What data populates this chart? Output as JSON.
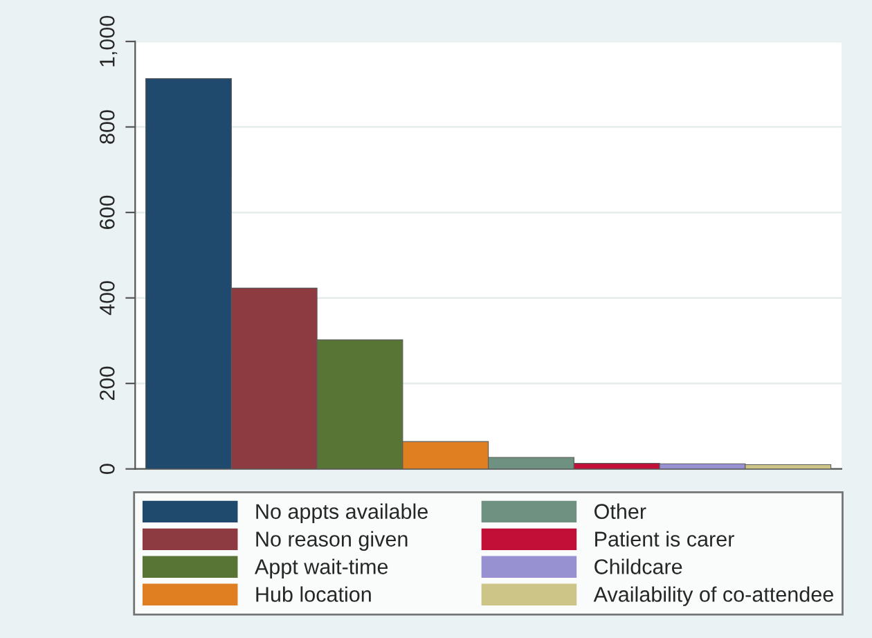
{
  "chart_data": {
    "type": "bar",
    "categories": [
      null
    ],
    "series": [
      {
        "name": "No appts available",
        "color": "#1f4a6e",
        "values": [
          913
        ]
      },
      {
        "name": "No reason given",
        "color": "#8e3a41",
        "values": [
          423
        ]
      },
      {
        "name": "Appt wait-time",
        "color": "#597535",
        "values": [
          302
        ]
      },
      {
        "name": "Hub location",
        "color": "#e07e22",
        "values": [
          64
        ]
      },
      {
        "name": "Other",
        "color": "#6f9181",
        "values": [
          27
        ]
      },
      {
        "name": "Patient is carer",
        "color": "#c10f38",
        "values": [
          13
        ]
      },
      {
        "name": "Childcare",
        "color": "#9791d1",
        "values": [
          12
        ]
      },
      {
        "name": "Availability of co-attendee",
        "color": "#cdc487",
        "values": [
          10
        ]
      }
    ],
    "ylim": [
      0,
      1000
    ],
    "yticks": [
      0,
      200,
      400,
      600,
      {
        "value": 800,
        "label": "800"
      },
      {
        "value": 1000,
        "label": "1,000"
      }
    ],
    "grid": "y",
    "legend": "bottom"
  }
}
